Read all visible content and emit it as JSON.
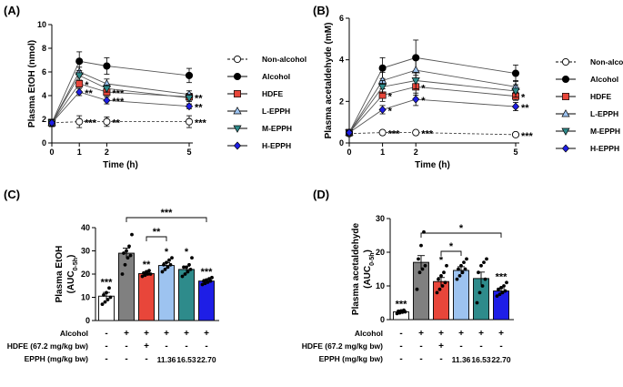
{
  "colors": {
    "non_alcohol": "#ffffff",
    "alcohol": "#000000",
    "alcohol_b": "#808080",
    "hdfe": "#e8463a",
    "l_epph": "#9dc3f0",
    "m_epph": "#2e8b8b",
    "h_epph": "#1e1ee6"
  },
  "chart_data": [
    {
      "panel": "(A)",
      "type": "line",
      "ylabel": "Plasma EtOH (nmol)",
      "xlabel": "Time (h)",
      "x": [
        0,
        1,
        2,
        5
      ],
      "xticks": [
        "0",
        "1",
        "2",
        "5"
      ],
      "ylim": [
        0,
        10
      ],
      "yticks": [
        "0",
        "2",
        "4",
        "6",
        "8",
        "10"
      ],
      "series": [
        {
          "name": "Non-alcohol",
          "marker": "circle-open",
          "dashed": true,
          "values": [
            1.7,
            1.8,
            1.8,
            1.8
          ],
          "err": [
            0.3,
            0.5,
            0.4,
            0.5
          ],
          "sig": [
            "",
            "***",
            "**",
            "***"
          ]
        },
        {
          "name": "Alcohol",
          "marker": "circle",
          "values": [
            1.7,
            6.9,
            6.5,
            5.7
          ],
          "err": [
            0.3,
            0.8,
            0.7,
            0.6
          ],
          "sig": [
            "",
            "",
            "",
            ""
          ]
        },
        {
          "name": "HDFE",
          "marker": "square",
          "values": [
            1.7,
            5.0,
            4.3,
            3.9
          ],
          "err": [
            0.3,
            0.3,
            0.3,
            0.3
          ],
          "sig": [
            "",
            "*",
            "***",
            "**"
          ]
        },
        {
          "name": "L-EPPH",
          "marker": "triangle-up",
          "values": [
            1.7,
            6.0,
            5.0,
            4.1
          ],
          "err": [
            0.3,
            0.4,
            0.4,
            0.3
          ],
          "sig": [
            "",
            "",
            "",
            ""
          ]
        },
        {
          "name": "M-EPPH",
          "marker": "triangle-down",
          "values": [
            1.7,
            5.7,
            4.6,
            3.8
          ],
          "err": [
            0.3,
            0.4,
            0.3,
            0.3
          ],
          "sig": [
            "",
            "",
            "",
            ""
          ]
        },
        {
          "name": "H-EPPH",
          "marker": "diamond",
          "values": [
            1.7,
            4.3,
            3.6,
            3.1
          ],
          "err": [
            0.3,
            0.3,
            0.3,
            0.2
          ],
          "sig": [
            "",
            "**",
            "***",
            "**"
          ]
        }
      ]
    },
    {
      "panel": "(B)",
      "type": "line",
      "ylabel": "Plasma acetaldehyde (mM)",
      "xlabel": "Time (h)",
      "x": [
        0,
        1,
        2,
        5
      ],
      "xticks": [
        "0",
        "1",
        "2",
        "5"
      ],
      "ylim": [
        0,
        6
      ],
      "yticks": [
        "0",
        "2",
        "4",
        "6"
      ],
      "series": [
        {
          "name": "Non-alcohol",
          "marker": "circle-open",
          "dashed": true,
          "values": [
            0.45,
            0.5,
            0.5,
            0.4
          ],
          "err": [
            0.05,
            0.05,
            0.05,
            0.05
          ],
          "sig": [
            "",
            "***",
            "***",
            "***"
          ]
        },
        {
          "name": "Alcohol",
          "marker": "circle",
          "values": [
            0.5,
            3.6,
            4.1,
            3.35
          ],
          "err": [
            0.1,
            0.5,
            0.85,
            0.4
          ],
          "sig": [
            "",
            "",
            "",
            ""
          ]
        },
        {
          "name": "HDFE",
          "marker": "square",
          "values": [
            0.5,
            2.3,
            2.7,
            2.25
          ],
          "err": [
            0.1,
            0.3,
            0.4,
            0.2
          ],
          "sig": [
            "",
            "*",
            "*",
            "*"
          ]
        },
        {
          "name": "L-EPPH",
          "marker": "triangle-up",
          "values": [
            0.5,
            3.0,
            3.5,
            2.7
          ],
          "err": [
            0.1,
            0.4,
            0.5,
            0.3
          ],
          "sig": [
            "",
            "",
            "",
            ""
          ]
        },
        {
          "name": "M-EPPH",
          "marker": "triangle-down",
          "values": [
            0.5,
            2.7,
            3.0,
            2.5
          ],
          "err": [
            0.1,
            0.3,
            0.4,
            0.3
          ],
          "sig": [
            "",
            "",
            "",
            ""
          ]
        },
        {
          "name": "H-EPPH",
          "marker": "diamond",
          "values": [
            0.5,
            1.6,
            2.1,
            1.75
          ],
          "err": [
            0.1,
            0.2,
            0.3,
            0.2
          ],
          "sig": [
            "",
            "*",
            "*",
            "**"
          ]
        }
      ]
    },
    {
      "panel": "(C)",
      "type": "bar",
      "ylabel": "Plasma EtOH",
      "ylabel2_base": "(AUC",
      "ylabel2_sub": "0-5h",
      "ylabel2_end": ")",
      "ylim": [
        0,
        40
      ],
      "yticks": [
        "0",
        "10",
        "20",
        "30",
        "40"
      ],
      "values": [
        10.5,
        29.0,
        20.2,
        23.7,
        22.0,
        17.0
      ],
      "err": [
        1.6,
        2.2,
        0.6,
        1.2,
        1.4,
        0.7
      ],
      "points": [
        [
          7,
          8,
          9,
          10,
          11,
          12,
          14
        ],
        [
          20,
          24,
          27,
          28,
          29,
          30,
          32,
          37
        ],
        [
          19,
          19.5,
          20,
          20,
          20.5,
          21,
          21.5
        ],
        [
          21,
          22,
          23,
          24,
          24,
          25,
          26,
          27
        ],
        [
          19,
          20,
          21,
          22,
          23,
          23,
          24,
          27
        ],
        [
          15.5,
          16,
          16.5,
          17,
          17,
          17.5,
          18,
          18.5
        ]
      ],
      "sig": [
        "***",
        "",
        "**",
        "*",
        "*",
        "***"
      ],
      "brackets": [
        {
          "from": 2,
          "to": 3,
          "label": "**"
        },
        {
          "from": 1,
          "to": 5,
          "label": "***"
        }
      ],
      "conditions": [
        {
          "label": "Alcohol",
          "values": [
            "-",
            "+",
            "+",
            "+",
            "+",
            "+"
          ]
        },
        {
          "label": "HDFE (67.2 mg/kg bw)",
          "values": [
            "-",
            "-",
            "+",
            "-",
            "-",
            "-"
          ]
        },
        {
          "label": "EPPH (mg/kg bw)",
          "values": [
            "-",
            "-",
            "-",
            "11.36",
            "16.53",
            "22.70"
          ]
        }
      ]
    },
    {
      "panel": "(D)",
      "type": "bar",
      "ylabel": "Plasma acetaldehyde",
      "ylabel2_base": "(AUC",
      "ylabel2_sub": "0-5h",
      "ylabel2_end": ")",
      "ylim": [
        0,
        30
      ],
      "yticks": [
        "0",
        "10",
        "20",
        "30"
      ],
      "values": [
        2.3,
        17.0,
        11.3,
        14.6,
        12.2,
        8.5
      ],
      "err": [
        0.3,
        2.0,
        1.2,
        1.1,
        1.9,
        0.7
      ],
      "points": [
        [
          1.8,
          2.0,
          2.2,
          2.3,
          2.5,
          2.6,
          2.8
        ],
        [
          9,
          14,
          15,
          16,
          18,
          22,
          26
        ],
        [
          8,
          9,
          10,
          11,
          12,
          13,
          14,
          16
        ],
        [
          12,
          13,
          14,
          15,
          15,
          16,
          17,
          18
        ],
        [
          5,
          8,
          10,
          12,
          14,
          16,
          17,
          18
        ],
        [
          7,
          7.5,
          8,
          8.5,
          9,
          9.5,
          10,
          11
        ]
      ],
      "sig": [
        "***",
        "",
        "*",
        "",
        "",
        "***"
      ],
      "brackets": [
        {
          "from": 2,
          "to": 3,
          "label": "*"
        },
        {
          "from": 1,
          "to": 5,
          "label": "*"
        }
      ],
      "conditions": [
        {
          "label": "Alcohol",
          "values": [
            "-",
            "+",
            "+",
            "+",
            "+",
            "+"
          ]
        },
        {
          "label": "HDFE (67.2 mg/kg bw)",
          "values": [
            "-",
            "-",
            "+",
            "-",
            "-",
            "-"
          ]
        },
        {
          "label": "EPPH (mg/kg bw)",
          "values": [
            "-",
            "-",
            "-",
            "11.36",
            "16.53",
            "22.70"
          ]
        }
      ]
    }
  ]
}
